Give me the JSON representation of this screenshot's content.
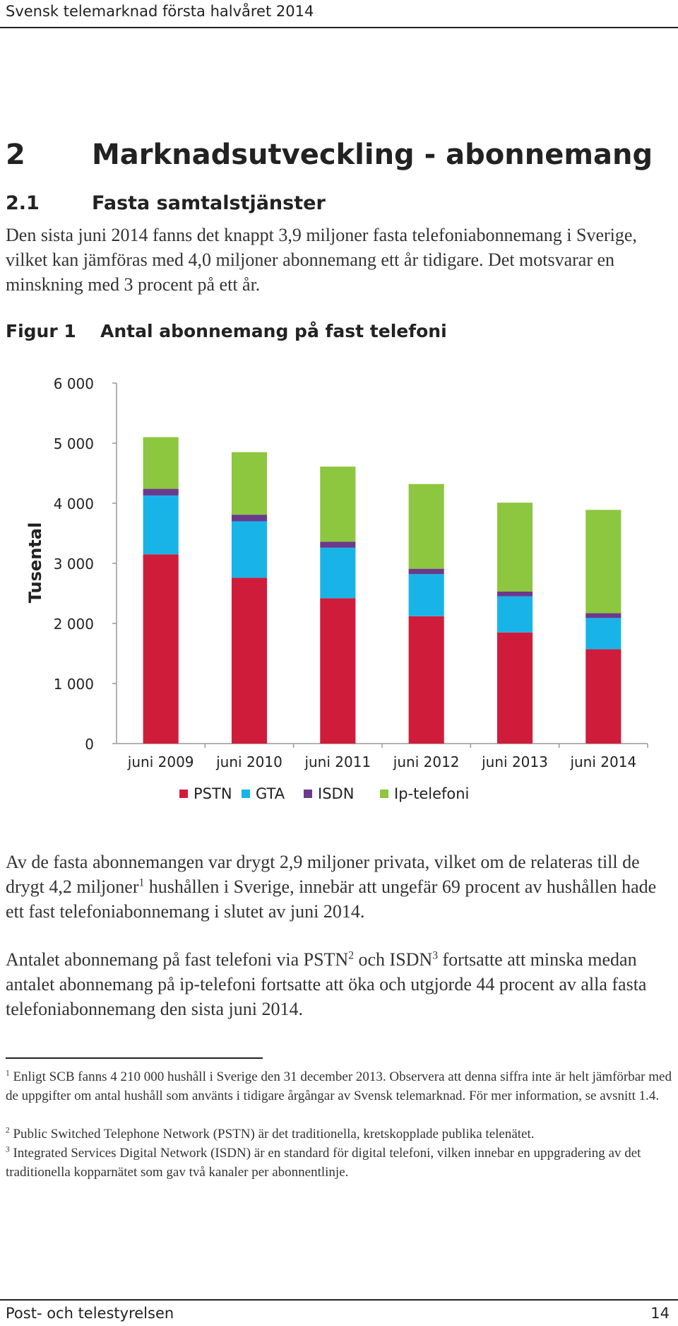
{
  "header": {
    "running_title": "Svensk telemarknad första halvåret 2014"
  },
  "section": {
    "number": "2",
    "title": "Marknadsutveckling - abonnemang"
  },
  "subsection": {
    "number": "2.1",
    "title": "Fasta samtalstjänster"
  },
  "intro_paragraph": "Den sista juni 2014 fanns det knappt 3,9 miljoner fasta telefoniabonnemang i Sverige, vilket kan jämföras med 4,0 miljoner abonnemang ett år tidigare. Det motsvarar en minskning med 3 procent på ett år.",
  "figure": {
    "label": "Figur 1",
    "caption": "Antal abonnemang på fast telefoni"
  },
  "chart_data": {
    "type": "bar",
    "stacked": true,
    "categories": [
      "juni 2009",
      "juni 2010",
      "juni 2011",
      "juni 2012",
      "juni 2013",
      "juni 2014"
    ],
    "series": [
      {
        "name": "PSTN",
        "color": "#d01c3b",
        "values": [
          3150,
          2760,
          2420,
          2120,
          1850,
          1570
        ]
      },
      {
        "name": "GTA",
        "color": "#18b4e8",
        "values": [
          980,
          940,
          840,
          700,
          600,
          520
        ]
      },
      {
        "name": "ISDN",
        "color": "#6b3a8c",
        "values": [
          110,
          110,
          100,
          90,
          80,
          80
        ]
      },
      {
        "name": "Ip-telefoni",
        "color": "#8dc63f",
        "values": [
          860,
          1040,
          1250,
          1410,
          1480,
          1720
        ]
      }
    ],
    "ylabel": "Tusental",
    "ylim": [
      0,
      6000
    ],
    "yticks": [
      "6 000",
      "5 000",
      "4 000",
      "3 000",
      "2 000",
      "1 000",
      "0"
    ],
    "grid": false,
    "legend_position": "bottom"
  },
  "paragraph2": {
    "part1": "Av de fasta abonnemangen var drygt 2,9 miljoner privata, vilket om de relateras till de drygt 4,2 miljoner",
    "ref1": "1",
    "part2": " hushållen i Sverige, innebär att ungefär 69 procent av hushållen hade ett fast telefoniabonnemang i slutet av juni 2014."
  },
  "paragraph3": {
    "part1": "Antalet abonnemang på fast telefoni via PSTN",
    "ref2": "2",
    "part2": " och ISDN",
    "ref3": "3",
    "part3": " fortsatte att minska medan antalet abonnemang på ip-telefoni fortsatte att öka och utgjorde 44 procent av alla fasta telefoniabonnemang den sista juni 2014."
  },
  "footnotes": [
    {
      "ref": "1",
      "text": " Enligt SCB fanns 4 210 000 hushåll i Sverige den 31 december 2013. Observera att denna siffra inte är helt jämförbar med de uppgifter om antal hushåll som använts i tidigare årgångar av Svensk telemarknad. För mer information, se avsnitt 1.4."
    },
    {
      "ref": "2",
      "text": " Public Switched Telephone Network (PSTN) är det traditionella, kretskopplade publika telenätet."
    },
    {
      "ref": "3",
      "text": " Integrated Services Digital Network (ISDN) är en standard för digital telefoni, vilken innebar en uppgradering av det traditionella kopparnätet som gav två kanaler per abonnentlinje."
    }
  ],
  "footer": {
    "publisher": "Post- och telestyrelsen",
    "page_number": "14"
  }
}
